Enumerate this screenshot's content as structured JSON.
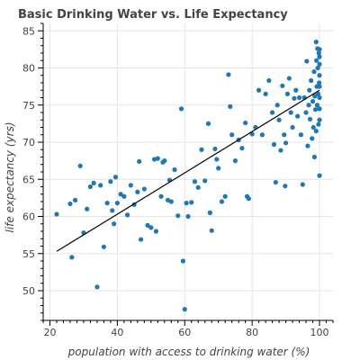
{
  "chart_data": {
    "type": "scatter",
    "title": "Basic Drinking Water vs. Life Expectancy",
    "xlabel": "population with access to drinking water (%)",
    "ylabel": "life expectancy (yrs)",
    "xlim": [
      18,
      104
    ],
    "ylim": [
      46,
      86
    ],
    "x_ticks": [
      20,
      40,
      60,
      80,
      100
    ],
    "y_ticks": [
      50,
      55,
      60,
      65,
      70,
      75,
      80,
      85
    ],
    "grid": true,
    "point_color": "#1f77b4",
    "line_color": "#000000",
    "fit_line": {
      "x": [
        22,
        100
      ],
      "y": [
        55.3,
        77.0
      ]
    },
    "points": [
      {
        "x": 22,
        "y": 60.3
      },
      {
        "x": 26,
        "y": 61.7
      },
      {
        "x": 26.5,
        "y": 54.5
      },
      {
        "x": 27.5,
        "y": 62.2
      },
      {
        "x": 29,
        "y": 66.8
      },
      {
        "x": 30,
        "y": 57.8
      },
      {
        "x": 31,
        "y": 61.0
      },
      {
        "x": 32,
        "y": 64.0
      },
      {
        "x": 33,
        "y": 64.5
      },
      {
        "x": 34,
        "y": 50.5
      },
      {
        "x": 35,
        "y": 64.2
      },
      {
        "x": 36,
        "y": 55.9
      },
      {
        "x": 37,
        "y": 61.8
      },
      {
        "x": 38,
        "y": 64.7
      },
      {
        "x": 38.5,
        "y": 60.8
      },
      {
        "x": 39,
        "y": 59.0
      },
      {
        "x": 39.5,
        "y": 65.3
      },
      {
        "x": 40,
        "y": 61.8
      },
      {
        "x": 41,
        "y": 63.0
      },
      {
        "x": 42,
        "y": 62.7
      },
      {
        "x": 43,
        "y": 60.2
      },
      {
        "x": 44,
        "y": 64.2
      },
      {
        "x": 45,
        "y": 61.6
      },
      {
        "x": 46,
        "y": 63.3
      },
      {
        "x": 46.5,
        "y": 67.4
      },
      {
        "x": 47,
        "y": 56.9
      },
      {
        "x": 48,
        "y": 63.7
      },
      {
        "x": 49,
        "y": 58.8
      },
      {
        "x": 50,
        "y": 58.5
      },
      {
        "x": 51,
        "y": 67.7
      },
      {
        "x": 51.5,
        "y": 58.0
      },
      {
        "x": 52,
        "y": 67.8
      },
      {
        "x": 53,
        "y": 62.7
      },
      {
        "x": 53.5,
        "y": 67.3
      },
      {
        "x": 54,
        "y": 67.5
      },
      {
        "x": 55,
        "y": 62.2
      },
      {
        "x": 55.5,
        "y": 64.9
      },
      {
        "x": 56,
        "y": 62.0
      },
      {
        "x": 57,
        "y": 66.3
      },
      {
        "x": 58,
        "y": 60.1
      },
      {
        "x": 59,
        "y": 74.5
      },
      {
        "x": 59.5,
        "y": 54.0
      },
      {
        "x": 60,
        "y": 47.5
      },
      {
        "x": 60.5,
        "y": 61.8
      },
      {
        "x": 61,
        "y": 60.0
      },
      {
        "x": 62,
        "y": 61.9
      },
      {
        "x": 63,
        "y": 64.7
      },
      {
        "x": 64,
        "y": 63.9
      },
      {
        "x": 65,
        "y": 69.0
      },
      {
        "x": 66,
        "y": 64.8
      },
      {
        "x": 67,
        "y": 72.5
      },
      {
        "x": 67.5,
        "y": 60.5
      },
      {
        "x": 68,
        "y": 58.1
      },
      {
        "x": 69,
        "y": 69.1
      },
      {
        "x": 69.5,
        "y": 67.7
      },
      {
        "x": 70,
        "y": 66.5
      },
      {
        "x": 71,
        "y": 62.0
      },
      {
        "x": 72,
        "y": 62.7
      },
      {
        "x": 73,
        "y": 79.1
      },
      {
        "x": 73.5,
        "y": 74.8
      },
      {
        "x": 74,
        "y": 71.0
      },
      {
        "x": 75,
        "y": 67.5
      },
      {
        "x": 76,
        "y": 70.3
      },
      {
        "x": 77,
        "y": 69.2
      },
      {
        "x": 78,
        "y": 72.6
      },
      {
        "x": 78.5,
        "y": 62.7
      },
      {
        "x": 79,
        "y": 62.4
      },
      {
        "x": 80,
        "y": 71.1
      },
      {
        "x": 81,
        "y": 72.0
      },
      {
        "x": 82,
        "y": 77.0
      },
      {
        "x": 83,
        "y": 71.0
      },
      {
        "x": 84,
        "y": 76.5
      },
      {
        "x": 85,
        "y": 78.3
      },
      {
        "x": 86,
        "y": 74.0
      },
      {
        "x": 86.5,
        "y": 69.7
      },
      {
        "x": 87,
        "y": 64.6
      },
      {
        "x": 87.5,
        "y": 75.0
      },
      {
        "x": 88,
        "y": 73.0
      },
      {
        "x": 88.5,
        "y": 68.9
      },
      {
        "x": 89,
        "y": 77.6
      },
      {
        "x": 89.5,
        "y": 71.0
      },
      {
        "x": 89.8,
        "y": 64.1
      },
      {
        "x": 90,
        "y": 69.9
      },
      {
        "x": 90.5,
        "y": 76.5
      },
      {
        "x": 91,
        "y": 78.6
      },
      {
        "x": 91.5,
        "y": 74.0
      },
      {
        "x": 92,
        "y": 72.0
      },
      {
        "x": 92.5,
        "y": 75.9
      },
      {
        "x": 93,
        "y": 77.0
      },
      {
        "x": 93.5,
        "y": 73.5
      },
      {
        "x": 94,
        "y": 76.0
      },
      {
        "x": 94.5,
        "y": 71.0
      },
      {
        "x": 95,
        "y": 64.3
      },
      {
        "x": 95.5,
        "y": 76.0
      },
      {
        "x": 96,
        "y": 74.0
      },
      {
        "x": 96.2,
        "y": 80.9
      },
      {
        "x": 96.5,
        "y": 69.5
      },
      {
        "x": 96.8,
        "y": 75.0
      },
      {
        "x": 97,
        "y": 77.0
      },
      {
        "x": 97.2,
        "y": 73.1
      },
      {
        "x": 97.5,
        "y": 78.3
      },
      {
        "x": 97.8,
        "y": 70.5
      },
      {
        "x": 98,
        "y": 75.5
      },
      {
        "x": 98.2,
        "y": 72.0
      },
      {
        "x": 98.4,
        "y": 79.5
      },
      {
        "x": 98.6,
        "y": 76.2
      },
      {
        "x": 98.8,
        "y": 74.4
      },
      {
        "x": 99,
        "y": 83.5
      },
      {
        "x": 99.1,
        "y": 81.0
      },
      {
        "x": 99.2,
        "y": 77.5
      },
      {
        "x": 99.3,
        "y": 75.0
      },
      {
        "x": 99.4,
        "y": 82.6
      },
      {
        "x": 99.5,
        "y": 80.0
      },
      {
        "x": 99.6,
        "y": 76.5
      },
      {
        "x": 99.7,
        "y": 72.4
      },
      {
        "x": 99.8,
        "y": 82.0
      },
      {
        "x": 99.9,
        "y": 78.0
      },
      {
        "x": 100,
        "y": 80.5
      },
      {
        "x": 100,
        "y": 81.5
      },
      {
        "x": 100,
        "y": 82.5
      },
      {
        "x": 100,
        "y": 79.0
      },
      {
        "x": 100,
        "y": 77.5
      },
      {
        "x": 100,
        "y": 76.0
      },
      {
        "x": 100,
        "y": 74.5
      },
      {
        "x": 100,
        "y": 73.0
      },
      {
        "x": 100,
        "y": 65.5
      },
      {
        "x": 99,
        "y": 71.5
      },
      {
        "x": 98.5,
        "y": 68.0
      }
    ]
  }
}
